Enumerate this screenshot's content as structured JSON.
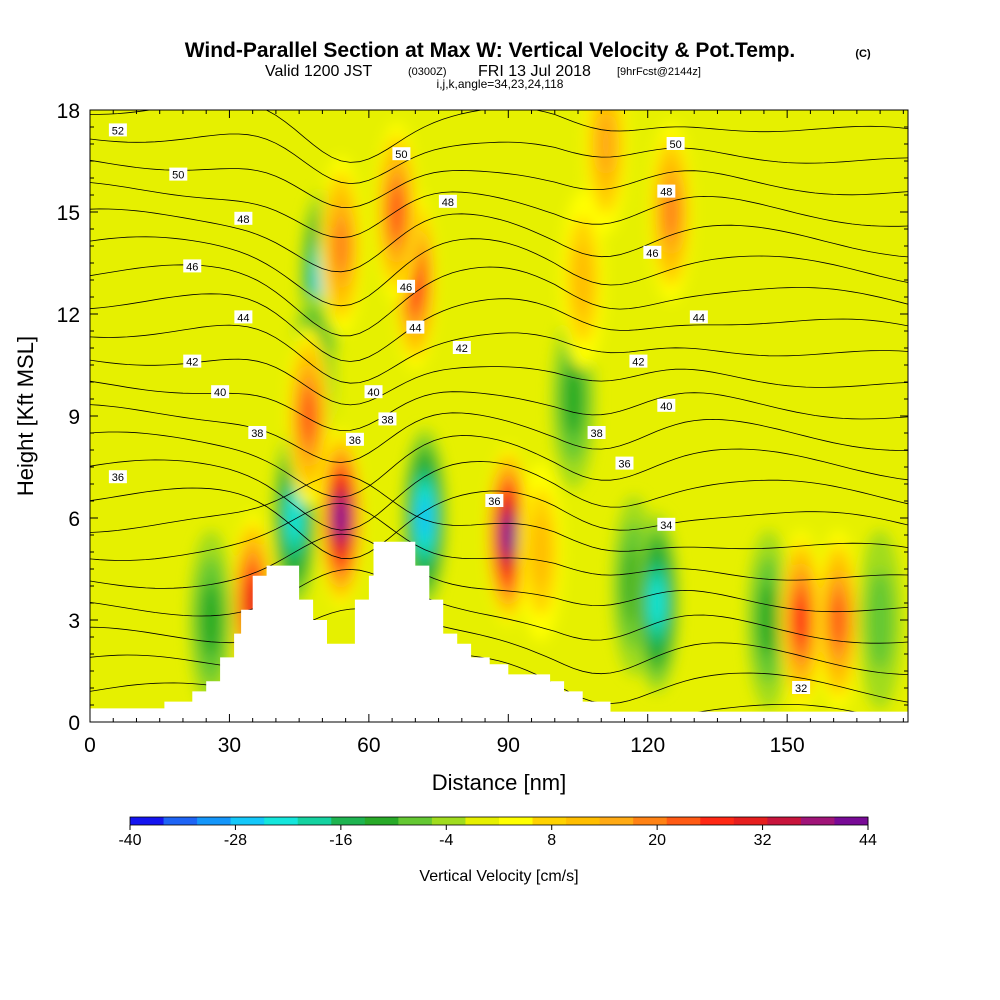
{
  "title": {
    "main": "Wind-Parallel Section at Max W: Vertical Velocity & Pot.Temp.",
    "main_suffix": "(C)",
    "sub_prefix": "Valid 1200 JST",
    "sub_utc": "(0300Z)",
    "sub_date": "FRI 13 Jul 2018",
    "sub_fcst": "[9hrFcst@2144z]",
    "meta": "i,j,k,angle=34,23,24,118"
  },
  "chart_data": {
    "type": "heatmap",
    "xlabel": "Distance [nm]",
    "ylabel": "Height [Kft MSL]",
    "xlim": [
      0,
      176
    ],
    "ylim": [
      0,
      18
    ],
    "x_ticks": [
      0,
      30,
      60,
      90,
      120,
      150
    ],
    "y_ticks": [
      0,
      3,
      6,
      9,
      12,
      15,
      18
    ],
    "colorbar": {
      "label": "Vertical Velocity [cm/s]",
      "levels": [
        -40,
        -36,
        -32,
        -28,
        -24,
        -20,
        -16,
        -12,
        -8,
        -4,
        0,
        4,
        8,
        12,
        16,
        20,
        24,
        28,
        32,
        36,
        40,
        44
      ],
      "tick_labels": [
        "-40",
        "-28",
        "-16",
        "-4",
        "8",
        "20",
        "32",
        "44"
      ],
      "colors": [
        "#1414f0",
        "#1e64f5",
        "#1496fa",
        "#14c8fa",
        "#14e6dc",
        "#14d2a0",
        "#1eb450",
        "#28aa28",
        "#64c832",
        "#a0dc1e",
        "#e6f000",
        "#ffff00",
        "#ffd200",
        "#ffbe00",
        "#ffaa14",
        "#ff8214",
        "#ff5a14",
        "#ff2814",
        "#e61e1e",
        "#c8143c",
        "#a01478",
        "#780a96"
      ]
    },
    "terrain": [
      [
        0,
        0.4
      ],
      [
        16,
        0.4
      ],
      [
        16,
        0.6
      ],
      [
        22,
        0.6
      ],
      [
        22,
        0.9
      ],
      [
        25,
        0.9
      ],
      [
        25,
        1.2
      ],
      [
        28,
        1.2
      ],
      [
        28,
        1.9
      ],
      [
        31,
        1.9
      ],
      [
        31,
        2.6
      ],
      [
        32.5,
        2.6
      ],
      [
        32.5,
        3.3
      ],
      [
        35,
        3.3
      ],
      [
        35,
        4.3
      ],
      [
        38,
        4.3
      ],
      [
        38,
        4.6
      ],
      [
        45,
        4.6
      ],
      [
        45,
        3.6
      ],
      [
        48,
        3.6
      ],
      [
        48,
        3.0
      ],
      [
        51,
        3.0
      ],
      [
        51,
        2.3
      ],
      [
        57,
        2.3
      ],
      [
        57,
        3.6
      ],
      [
        60,
        3.6
      ],
      [
        60,
        4.3
      ],
      [
        61,
        4.3
      ],
      [
        61,
        5.3
      ],
      [
        70,
        5.3
      ],
      [
        70,
        4.6
      ],
      [
        73,
        4.6
      ],
      [
        73,
        3.6
      ],
      [
        76,
        3.6
      ],
      [
        76,
        2.6
      ],
      [
        79,
        2.6
      ],
      [
        79,
        2.3
      ],
      [
        82,
        2.3
      ],
      [
        82,
        1.9
      ],
      [
        86,
        1.9
      ],
      [
        86,
        1.7
      ],
      [
        90,
        1.7
      ],
      [
        90,
        1.4
      ],
      [
        99,
        1.4
      ],
      [
        99,
        1.2
      ],
      [
        102,
        1.2
      ],
      [
        102,
        0.9
      ],
      [
        106,
        0.9
      ],
      [
        106,
        0.6
      ],
      [
        112,
        0.6
      ],
      [
        112,
        0.3
      ],
      [
        176,
        0.3
      ]
    ],
    "theta_contours": {
      "interval": 1,
      "labels": [
        {
          "value": "52",
          "x": 6,
          "y": 17.4
        },
        {
          "value": "50",
          "x": 19,
          "y": 16.1
        },
        {
          "value": "48",
          "x": 33,
          "y": 14.8
        },
        {
          "value": "46",
          "x": 22,
          "y": 13.4
        },
        {
          "value": "44",
          "x": 33,
          "y": 11.9
        },
        {
          "value": "42",
          "x": 22,
          "y": 10.6
        },
        {
          "value": "40",
          "x": 28,
          "y": 9.7
        },
        {
          "value": "38",
          "x": 36,
          "y": 8.5
        },
        {
          "value": "36",
          "x": 6,
          "y": 7.2
        },
        {
          "value": "50",
          "x": 67,
          "y": 16.7
        },
        {
          "value": "48",
          "x": 77,
          "y": 15.3
        },
        {
          "value": "46",
          "x": 68,
          "y": 12.8
        },
        {
          "value": "44",
          "x": 70,
          "y": 11.6
        },
        {
          "value": "42",
          "x": 80,
          "y": 11.0
        },
        {
          "value": "40",
          "x": 61,
          "y": 9.7
        },
        {
          "value": "38",
          "x": 64,
          "y": 8.9
        },
        {
          "value": "36",
          "x": 57,
          "y": 8.3
        },
        {
          "value": "36",
          "x": 87,
          "y": 6.5
        },
        {
          "value": "50",
          "x": 126,
          "y": 17.0
        },
        {
          "value": "48",
          "x": 124,
          "y": 15.6
        },
        {
          "value": "46",
          "x": 121,
          "y": 13.8
        },
        {
          "value": "44",
          "x": 131,
          "y": 11.9
        },
        {
          "value": "42",
          "x": 118,
          "y": 10.6
        },
        {
          "value": "40",
          "x": 124,
          "y": 9.3
        },
        {
          "value": "38",
          "x": 109,
          "y": 8.5
        },
        {
          "value": "36",
          "x": 115,
          "y": 7.6
        },
        {
          "value": "34",
          "x": 124,
          "y": 5.8
        },
        {
          "value": "32",
          "x": 153,
          "y": 1.0
        }
      ]
    },
    "w_features": [
      {
        "x": 50,
        "y": 13,
        "w": -28
      },
      {
        "x": 48,
        "y": 10,
        "w": -24
      },
      {
        "x": 44,
        "y": 6,
        "w": -24
      },
      {
        "x": 54,
        "y": 14,
        "w": 20
      },
      {
        "x": 47,
        "y": 9,
        "w": 24
      },
      {
        "x": 54,
        "y": 6,
        "w": 44
      },
      {
        "x": 70,
        "y": 13,
        "w": 28
      },
      {
        "x": 66,
        "y": 15,
        "w": 24
      },
      {
        "x": 72,
        "y": 6,
        "w": -28
      },
      {
        "x": 90,
        "y": 5.5,
        "w": 44
      },
      {
        "x": 97,
        "y": 5,
        "w": 12
      },
      {
        "x": 104,
        "y": 9.5,
        "w": -12
      },
      {
        "x": 106,
        "y": 13,
        "w": 12
      },
      {
        "x": 111,
        "y": 17,
        "w": 16
      },
      {
        "x": 117,
        "y": 4,
        "w": -12
      },
      {
        "x": 122,
        "y": 3.5,
        "w": -24
      },
      {
        "x": 125,
        "y": 15,
        "w": 20
      },
      {
        "x": 146,
        "y": 3,
        "w": -12
      },
      {
        "x": 153,
        "y": 3,
        "w": 28
      },
      {
        "x": 161,
        "y": 3,
        "w": 24
      },
      {
        "x": 170,
        "y": 3,
        "w": -8
      },
      {
        "x": 35,
        "y": 3.5,
        "w": 32
      },
      {
        "x": 26,
        "y": 3,
        "w": -12
      }
    ]
  }
}
